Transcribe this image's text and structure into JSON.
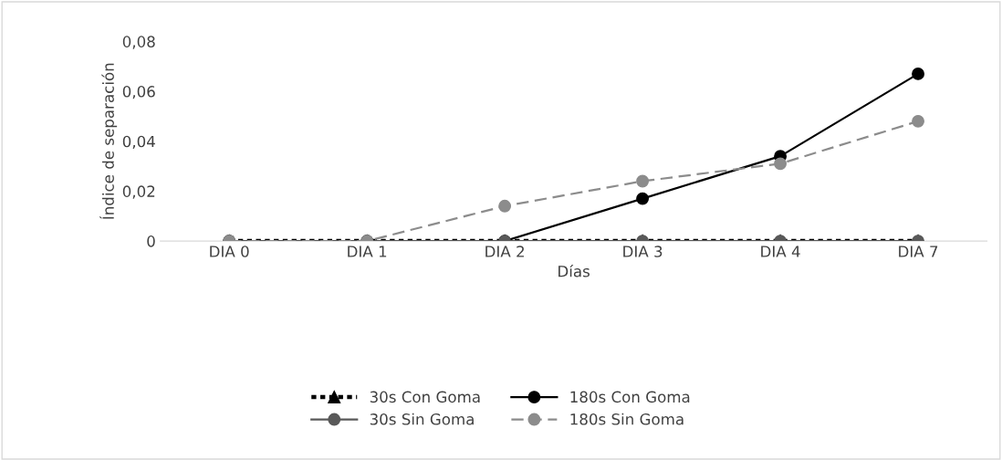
{
  "chart_data": {
    "type": "line",
    "xlabel": "Días",
    "ylabel": "Índice de separación",
    "categories": [
      "DIA 0",
      "DIA 1",
      "DIA 2",
      "DIA 3",
      "DIA 4",
      "DIA 7"
    ],
    "ylim": [
      0,
      0.08
    ],
    "yticks": [
      {
        "value": 0,
        "label": "0"
      },
      {
        "value": 0.02,
        "label": "0,02"
      },
      {
        "value": 0.04,
        "label": "0,04"
      },
      {
        "value": 0.06,
        "label": "0,06"
      },
      {
        "value": 0.08,
        "label": "0,08"
      }
    ],
    "grid": false,
    "legend": "bottom",
    "series": [
      {
        "name": "30s Con Goma",
        "color": "#000000",
        "line_style": "dotted",
        "marker": "triangle",
        "values": [
          0,
          0,
          0,
          0,
          0,
          0
        ]
      },
      {
        "name": "180s Con Goma",
        "color": "#000000",
        "line_style": "solid",
        "marker": "circle",
        "values": [
          0,
          0,
          0,
          0.017,
          0.034,
          0.067
        ]
      },
      {
        "name": "30s Sin Goma",
        "color": "#595959",
        "line_style": "solid",
        "marker": "circle",
        "values": [
          0,
          0,
          0,
          0,
          0,
          0
        ]
      },
      {
        "name": "180s Sin Goma",
        "color": "#8c8c8c",
        "line_style": "dashed",
        "marker": "circle",
        "values": [
          0,
          0,
          0.014,
          0.024,
          0.031,
          0.048
        ]
      }
    ]
  }
}
